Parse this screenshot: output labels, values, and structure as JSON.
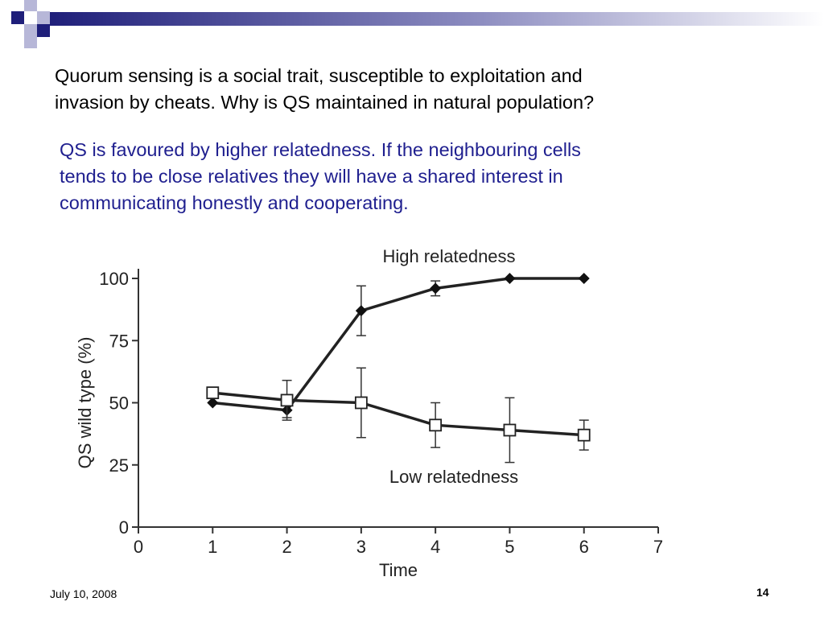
{
  "slide": {
    "question": "Quorum sensing is a social trait, susceptible to exploitation and\ninvasion by cheats. Why is QS maintained in natural population?",
    "answer": "QS is favoured by higher relatedness.  If the neighbouring cells\ntends to be close relatives they will have a shared interest in\ncommunicating honestly and cooperating.",
    "footer_date": "July 10, 2008",
    "slide_number": "14",
    "colors": {
      "question": "#000000",
      "answer": "#1f1f8f",
      "decoration": "#1f1f7a"
    }
  },
  "chart_data": {
    "type": "line",
    "title": "",
    "xlabel": "Time",
    "ylabel": "QS wild type (%)",
    "xlim": [
      0,
      7
    ],
    "ylim": [
      0,
      100
    ],
    "xticks": [
      0,
      1,
      2,
      3,
      4,
      5,
      6,
      7
    ],
    "yticks": [
      0,
      25,
      50,
      75,
      100
    ],
    "grid": false,
    "series": [
      {
        "name": "High relatedness",
        "marker": "filled-diamond",
        "x": [
          1,
          2,
          3,
          4,
          5,
          6
        ],
        "y": [
          50,
          47,
          87,
          96,
          100,
          100
        ],
        "err_low": [
          50,
          44,
          77,
          93,
          100,
          100
        ],
        "err_high": [
          50,
          50,
          97,
          99,
          100,
          100
        ]
      },
      {
        "name": "Low relatedness",
        "marker": "open-square",
        "x": [
          1,
          2,
          3,
          4,
          5,
          6
        ],
        "y": [
          54,
          51,
          50,
          41,
          39,
          37
        ],
        "err_low": [
          54,
          43,
          36,
          32,
          26,
          31
        ],
        "err_high": [
          54,
          59,
          64,
          50,
          52,
          43
        ]
      }
    ]
  }
}
